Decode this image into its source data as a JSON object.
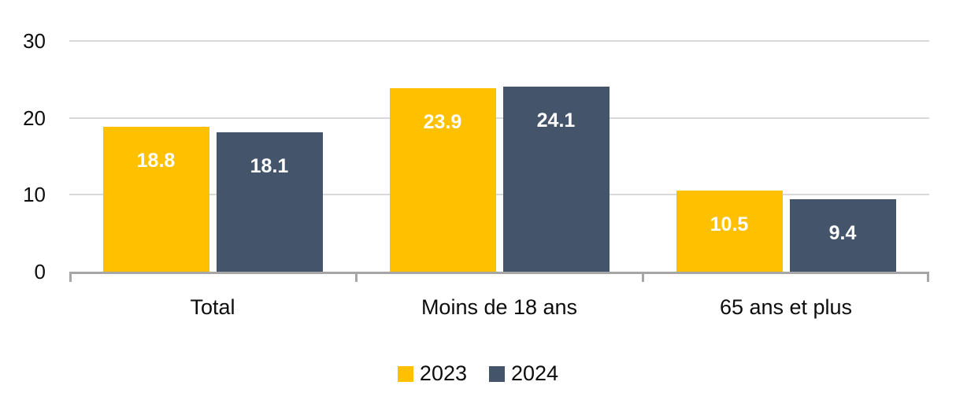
{
  "chart_data": {
    "type": "bar",
    "title": "",
    "xlabel": "",
    "ylabel": "",
    "categories": [
      "Total",
      "Moins de 18 ans",
      "65 ans et plus"
    ],
    "series": [
      {
        "name": "2023",
        "color": "#FFC000",
        "values": [
          18.8,
          23.9,
          10.5
        ]
      },
      {
        "name": "2024",
        "color": "#44546A",
        "values": [
          18.1,
          24.1,
          9.4
        ]
      }
    ],
    "value_labels": [
      "18.8",
      "18.1",
      "23.9",
      "24.1",
      "10.5",
      "9.4"
    ],
    "value_label_position": "inside-end",
    "value_label_color": "#FFFFFF",
    "ylim": [
      0,
      30
    ],
    "yticks": [
      0,
      10,
      20,
      30
    ],
    "grid": true,
    "legend_position": "bottom"
  },
  "colors": {
    "background": "#FFFFFF",
    "gridline": "#D9D9D9",
    "axis_line": "#A6A6A6",
    "axis_text": "#0D0D0D"
  }
}
